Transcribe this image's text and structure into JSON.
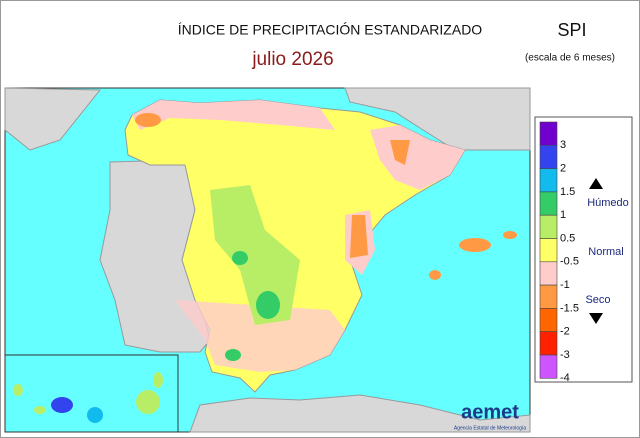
{
  "header": {
    "title": "ÍNDICE DE PRECIPITACIÓN ESTANDARIZADO",
    "period": "julio  2026",
    "index": "SPI",
    "scale": "(escala de 6 meses)"
  },
  "legend": {
    "classes": [
      {
        "label": "3",
        "color": "#7000cc"
      },
      {
        "label": "2",
        "color": "#3344ee"
      },
      {
        "label": "1.5",
        "color": "#11bbee"
      },
      {
        "label": "1",
        "color": "#33cc66"
      },
      {
        "label": "0.5",
        "color": "#b8ee66"
      },
      {
        "label": "-0.5",
        "color": "#ffff66"
      },
      {
        "label": "-1",
        "color": "#ffcccc"
      },
      {
        "label": "-1.5",
        "color": "#ff9944"
      },
      {
        "label": "-2",
        "color": "#ff6600"
      },
      {
        "label": "-3",
        "color": "#ff2200"
      },
      {
        "label": "-4",
        "color": "#cc55ff"
      }
    ],
    "wet": "Húmedo",
    "normal": "Normal",
    "dry": "Seco"
  },
  "logo": {
    "name": "aemet",
    "subtitle": "Agencia Estatal de Meteorología"
  }
}
